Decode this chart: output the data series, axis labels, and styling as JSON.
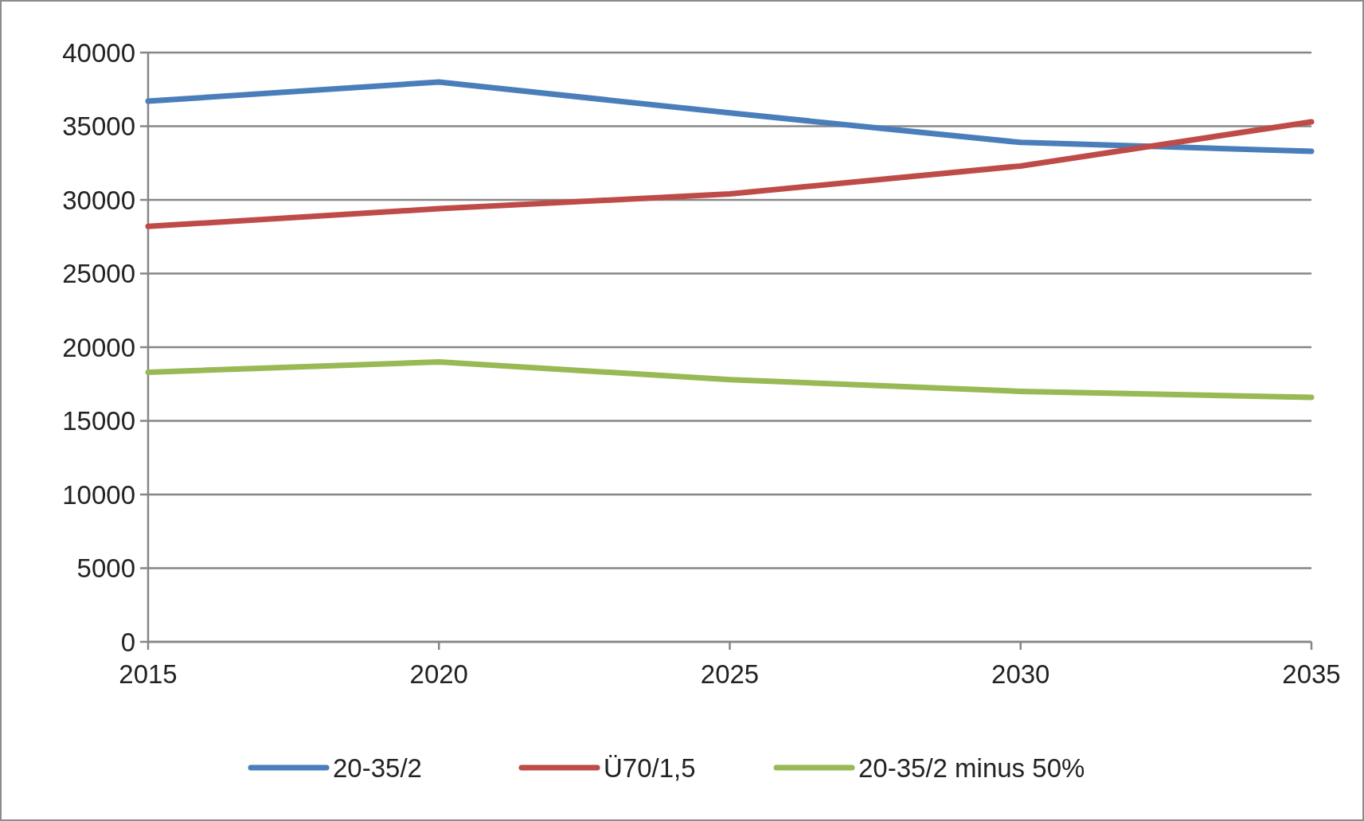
{
  "chart_data": {
    "type": "line",
    "x": [
      2015,
      2020,
      2025,
      2030,
      2035
    ],
    "series": [
      {
        "name": "20-35/2",
        "color": "#4a7ebb",
        "values": [
          36700,
          38000,
          35900,
          33900,
          33300
        ]
      },
      {
        "name": "Ü70/1,5",
        "color": "#be4b48",
        "values": [
          28200,
          29400,
          30400,
          32300,
          35300
        ]
      },
      {
        "name": "20-35/2 minus 50%",
        "color": "#98b954",
        "values": [
          18300,
          19000,
          17800,
          17000,
          16600
        ]
      }
    ],
    "xlim": [
      2015,
      2035
    ],
    "xticks": [
      2015,
      2020,
      2025,
      2030,
      2035
    ],
    "ylim": [
      0,
      40000
    ],
    "yticks": [
      0,
      5000,
      10000,
      15000,
      20000,
      25000,
      30000,
      35000,
      40000
    ],
    "grid": "y",
    "legend": "bottom",
    "marker": "none",
    "line_style": "solid"
  }
}
